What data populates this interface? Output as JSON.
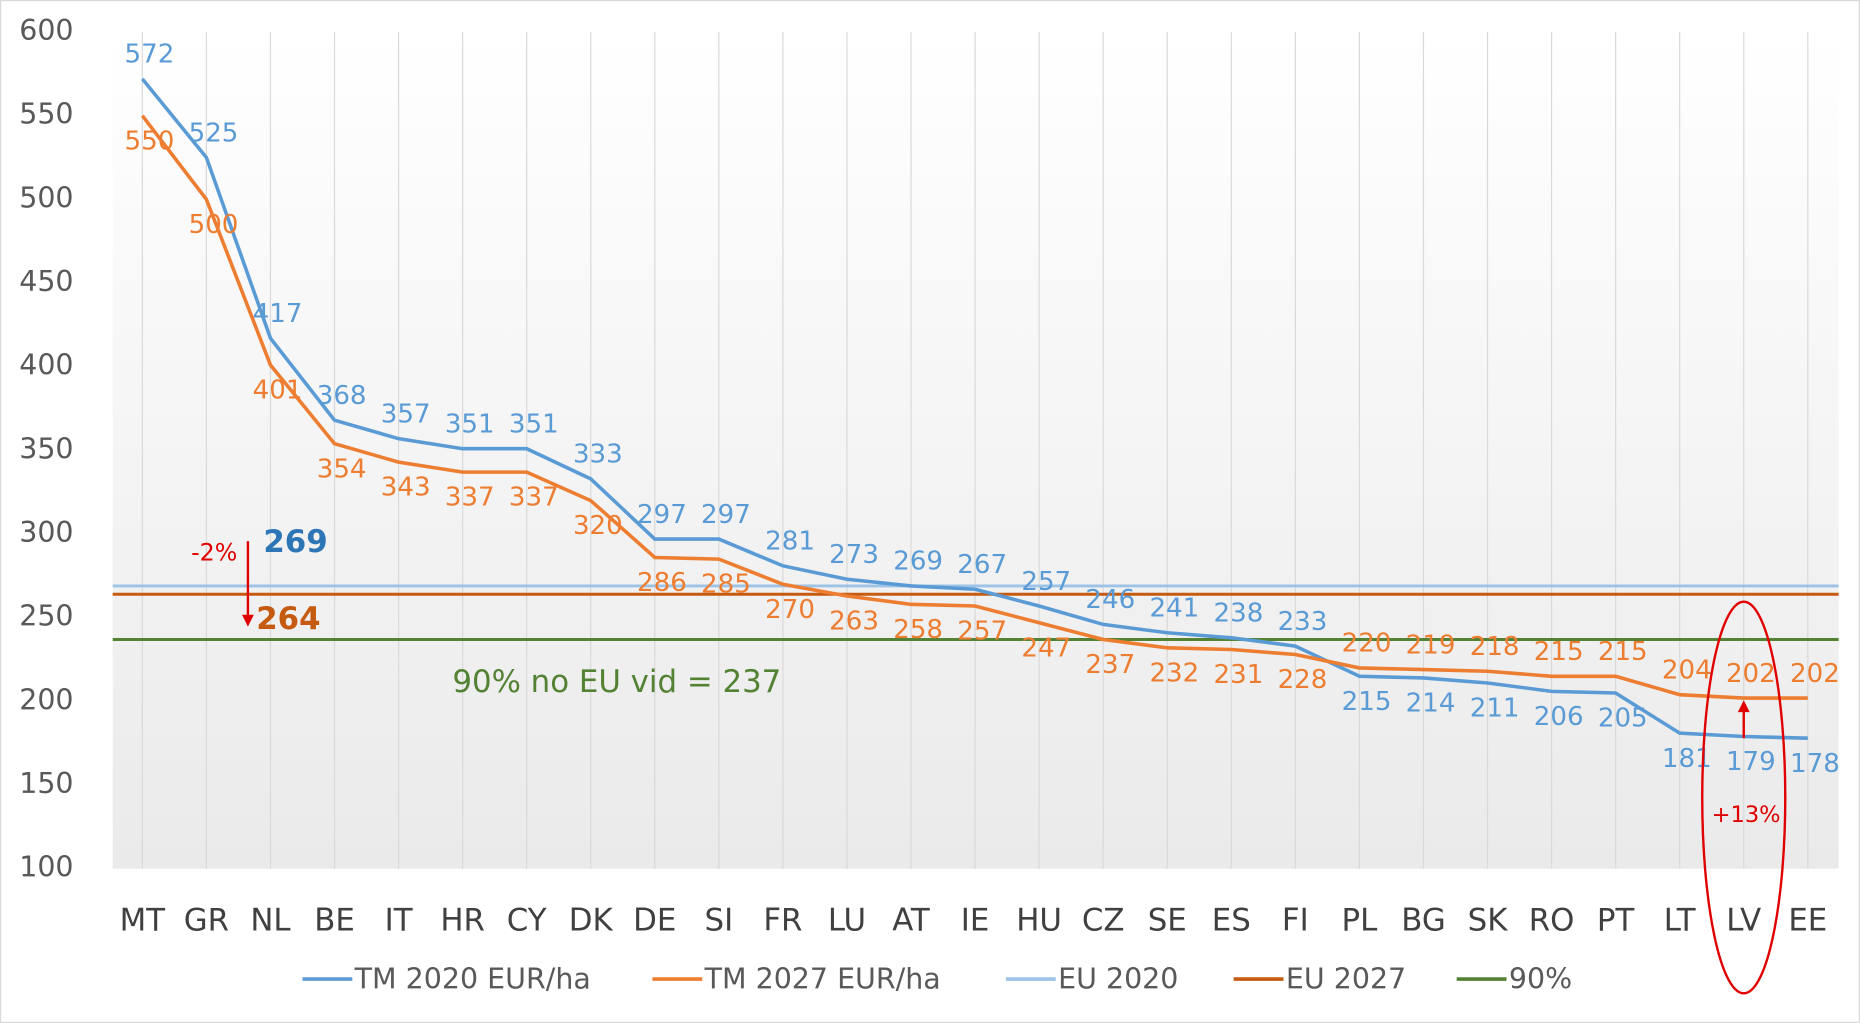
{
  "chart_data": {
    "type": "line",
    "categories": [
      "MT",
      "GR",
      "NL",
      "BE",
      "IT",
      "HR",
      "CY",
      "DK",
      "DE",
      "SI",
      "FR",
      "LU",
      "AT",
      "IE",
      "HU",
      "CZ",
      "SE",
      "ES",
      "FI",
      "PL",
      "BG",
      "SK",
      "RO",
      "PT",
      "LT",
      "LV",
      "EE"
    ],
    "series": [
      {
        "name": "TM 2020 EUR/ha",
        "color": "#5b9bd5",
        "values": [
          572,
          525,
          417,
          368,
          357,
          351,
          351,
          333,
          297,
          297,
          281,
          273,
          269,
          267,
          257,
          246,
          241,
          238,
          233,
          215,
          214,
          211,
          206,
          205,
          181,
          179,
          178
        ]
      },
      {
        "name": "TM 2027 EUR/ha",
        "color": "#ed7d31",
        "values": [
          550,
          500,
          401,
          354,
          343,
          337,
          337,
          320,
          286,
          285,
          270,
          263,
          258,
          257,
          247,
          237,
          232,
          231,
          228,
          220,
          219,
          218,
          215,
          215,
          204,
          202,
          202
        ]
      }
    ],
    "reference_lines": [
      {
        "name": "EU 2020",
        "color": "#9dc3e6",
        "value": 269
      },
      {
        "name": "EU 2027",
        "color": "#c55a11",
        "value": 264
      },
      {
        "name": "90%",
        "color": "#548235",
        "value": 237
      }
    ],
    "annotations": [
      "-2%",
      "90% no EU vid = 237",
      "+13%"
    ],
    "ylim": [
      100,
      600
    ],
    "yticks": [
      100,
      150,
      200,
      250,
      300,
      350,
      400,
      450,
      500,
      550,
      600
    ],
    "grid": "vertical",
    "legend": "bottom"
  }
}
